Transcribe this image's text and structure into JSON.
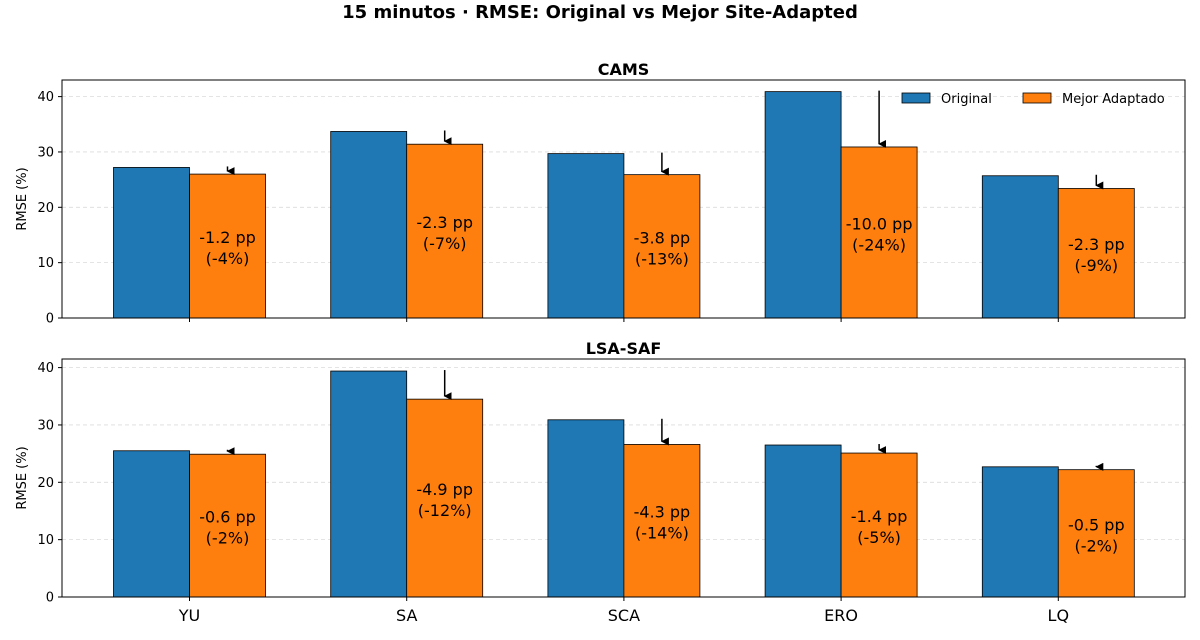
{
  "title": "15 minutos · RMSE: Original vs Mejor Site-Adapted",
  "colors": {
    "original": "#1f77b4",
    "adapted": "#ff7f0e"
  },
  "chart_data": [
    {
      "type": "bar",
      "title": "CAMS",
      "ylabel": "RMSE (%)",
      "ylim": [
        0,
        43
      ],
      "yticks": [
        0,
        10,
        20,
        30,
        40
      ],
      "grid": true,
      "legend_position": "top-right",
      "categories": [
        "YU",
        "SA",
        "SCA",
        "ERO",
        "LQ"
      ],
      "series": [
        {
          "name": "Original",
          "values": [
            27.2,
            33.7,
            29.7,
            40.9,
            25.7
          ]
        },
        {
          "name": "Mejor Adaptado",
          "values": [
            26.0,
            31.4,
            25.9,
            30.9,
            23.4
          ]
        }
      ],
      "annotations": [
        {
          "line1": "-1.2 pp",
          "line2": "(-4%)"
        },
        {
          "line1": "-2.3 pp",
          "line2": "(-7%)"
        },
        {
          "line1": "-3.8 pp",
          "line2": "(-13%)"
        },
        {
          "line1": "-10.0 pp",
          "line2": "(-24%)"
        },
        {
          "line1": "-2.3 pp",
          "line2": "(-9%)"
        }
      ]
    },
    {
      "type": "bar",
      "title": "LSA-SAF",
      "ylabel": "RMSE (%)",
      "ylim": [
        0,
        41.5
      ],
      "yticks": [
        0,
        10,
        20,
        30,
        40
      ],
      "grid": true,
      "categories": [
        "YU",
        "SA",
        "SCA",
        "ERO",
        "LQ"
      ],
      "series": [
        {
          "name": "Original",
          "values": [
            25.5,
            39.4,
            30.9,
            26.5,
            22.7
          ]
        },
        {
          "name": "Mejor Adaptado",
          "values": [
            24.9,
            34.5,
            26.6,
            25.1,
            22.2
          ]
        }
      ],
      "annotations": [
        {
          "line1": "-0.6 pp",
          "line2": "(-2%)"
        },
        {
          "line1": "-4.9 pp",
          "line2": "(-12%)"
        },
        {
          "line1": "-4.3 pp",
          "line2": "(-14%)"
        },
        {
          "line1": "-1.4 pp",
          "line2": "(-5%)"
        },
        {
          "line1": "-0.5 pp",
          "line2": "(-2%)"
        }
      ]
    }
  ]
}
